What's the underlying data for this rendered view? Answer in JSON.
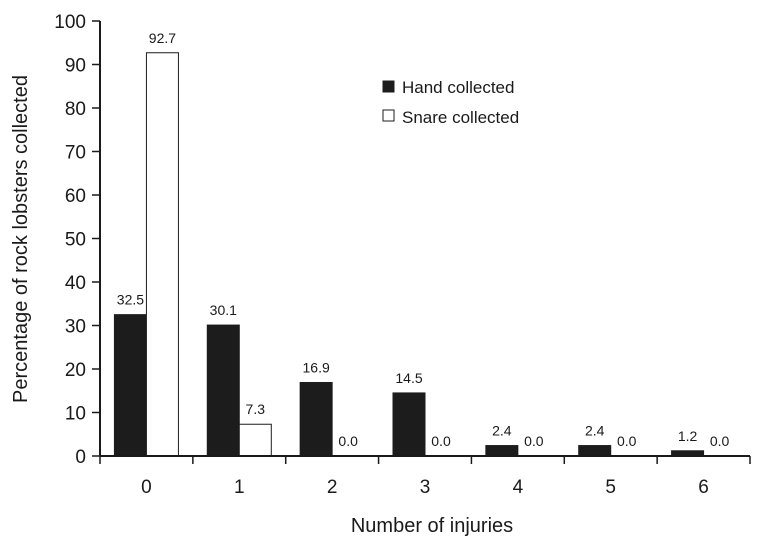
{
  "chart_data": {
    "type": "bar",
    "title": "",
    "xlabel": "Number of injuries",
    "ylabel": "Percentage of rock lobsters collected",
    "categories": [
      "0",
      "1",
      "2",
      "3",
      "4",
      "5",
      "6"
    ],
    "ylim": [
      0,
      100
    ],
    "yticks": [
      0,
      10,
      20,
      30,
      40,
      50,
      60,
      70,
      80,
      90,
      100
    ],
    "grid": false,
    "legend_position": "top-right",
    "series": [
      {
        "name": "Hand collected",
        "color": "#1c1c1c",
        "values": [
          32.5,
          30.1,
          16.9,
          14.5,
          2.4,
          2.4,
          1.2
        ],
        "labels": [
          "32.5",
          "30.1",
          "16.9",
          "14.5",
          "2.4",
          "2.4",
          "1.2"
        ]
      },
      {
        "name": "Snare collected",
        "color": "#ffffff",
        "values": [
          92.7,
          7.3,
          0.0,
          0.0,
          0.0,
          0.0,
          0.0
        ],
        "labels": [
          "92.7",
          "7.3",
          "0.0",
          "0.0",
          "0.0",
          "0.0",
          "0.0"
        ]
      }
    ]
  }
}
